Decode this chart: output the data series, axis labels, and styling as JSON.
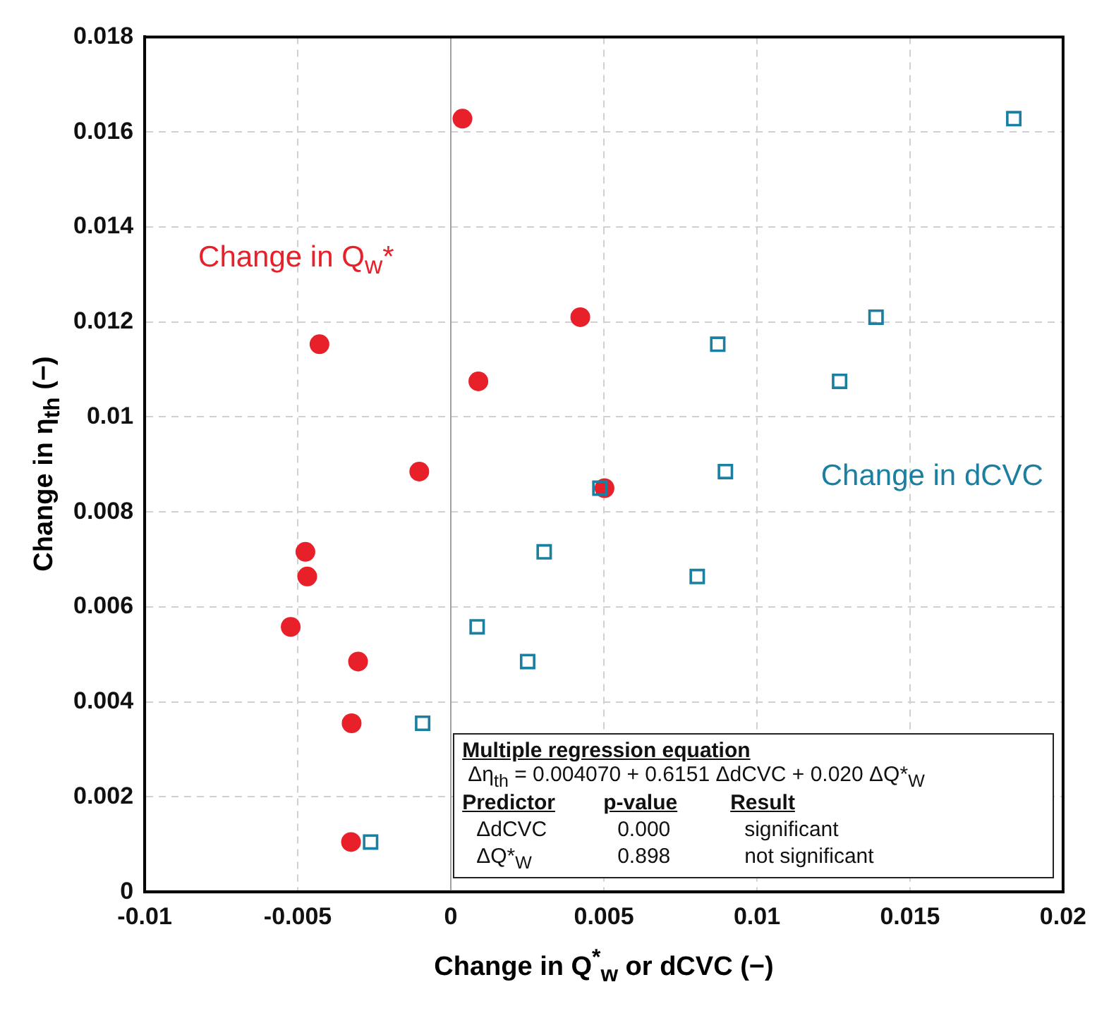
{
  "chart_data": {
    "type": "scatter",
    "xlabel": "Change in Q$^{*}$$_{w}$ or dCVC (−)",
    "ylabel": "Change in η$_{th}$ (−)",
    "xlim": [
      -0.01,
      0.02
    ],
    "xticks": [
      -0.01,
      -0.005,
      0,
      0.005,
      0.01,
      0.015,
      0.02
    ],
    "ylim": [
      0,
      0.018
    ],
    "yticks": [
      0,
      0.002,
      0.004,
      0.006,
      0.008,
      0.01,
      0.012,
      0.014,
      0.016,
      0.018
    ],
    "grid": true,
    "legend": false,
    "ref_lines": [
      {
        "axis": "x",
        "value": 0,
        "color": "#a0a0a0",
        "line_style": "solid"
      }
    ],
    "series": [
      {
        "name": "Change in Q$_{w}$*",
        "color": "#e8202a",
        "marker": "circle",
        "x": [
          0.00038,
          -0.00429,
          0.00423,
          0.0009,
          -0.00103,
          0.00502,
          -0.00475,
          -0.00469,
          -0.00523,
          -0.00303,
          -0.00324,
          -0.00326
        ],
        "values": [
          0.01628,
          0.01153,
          0.0121,
          0.01075,
          0.00885,
          0.0085,
          0.00716,
          0.00664,
          0.00558,
          0.00485,
          0.00355,
          0.00105
        ]
      },
      {
        "name": "Change in dCVC",
        "color": "#1a7fa0",
        "marker": "square",
        "x": [
          0.01839,
          0.00872,
          0.01389,
          0.0127,
          0.00897,
          0.00487,
          0.00305,
          0.00805,
          0.00086,
          0.00251,
          -0.00092,
          -0.00262
        ],
        "values": [
          0.01628,
          0.01153,
          0.0121,
          0.01075,
          0.00885,
          0.0085,
          0.00716,
          0.00664,
          0.00558,
          0.00485,
          0.00355,
          0.00105
        ]
      }
    ],
    "annotations": [
      "Multiple regression equation",
      "Δη$_{th}$ = 0.004070 + 0.6151 ΔdCVC + 0.020 ΔQ*$_{W}$",
      "Predictor",
      "p-value",
      "Result",
      "ΔdCVC",
      "0.000",
      "significant",
      "ΔQ*$_{W}$",
      "0.898",
      "not significant"
    ]
  }
}
